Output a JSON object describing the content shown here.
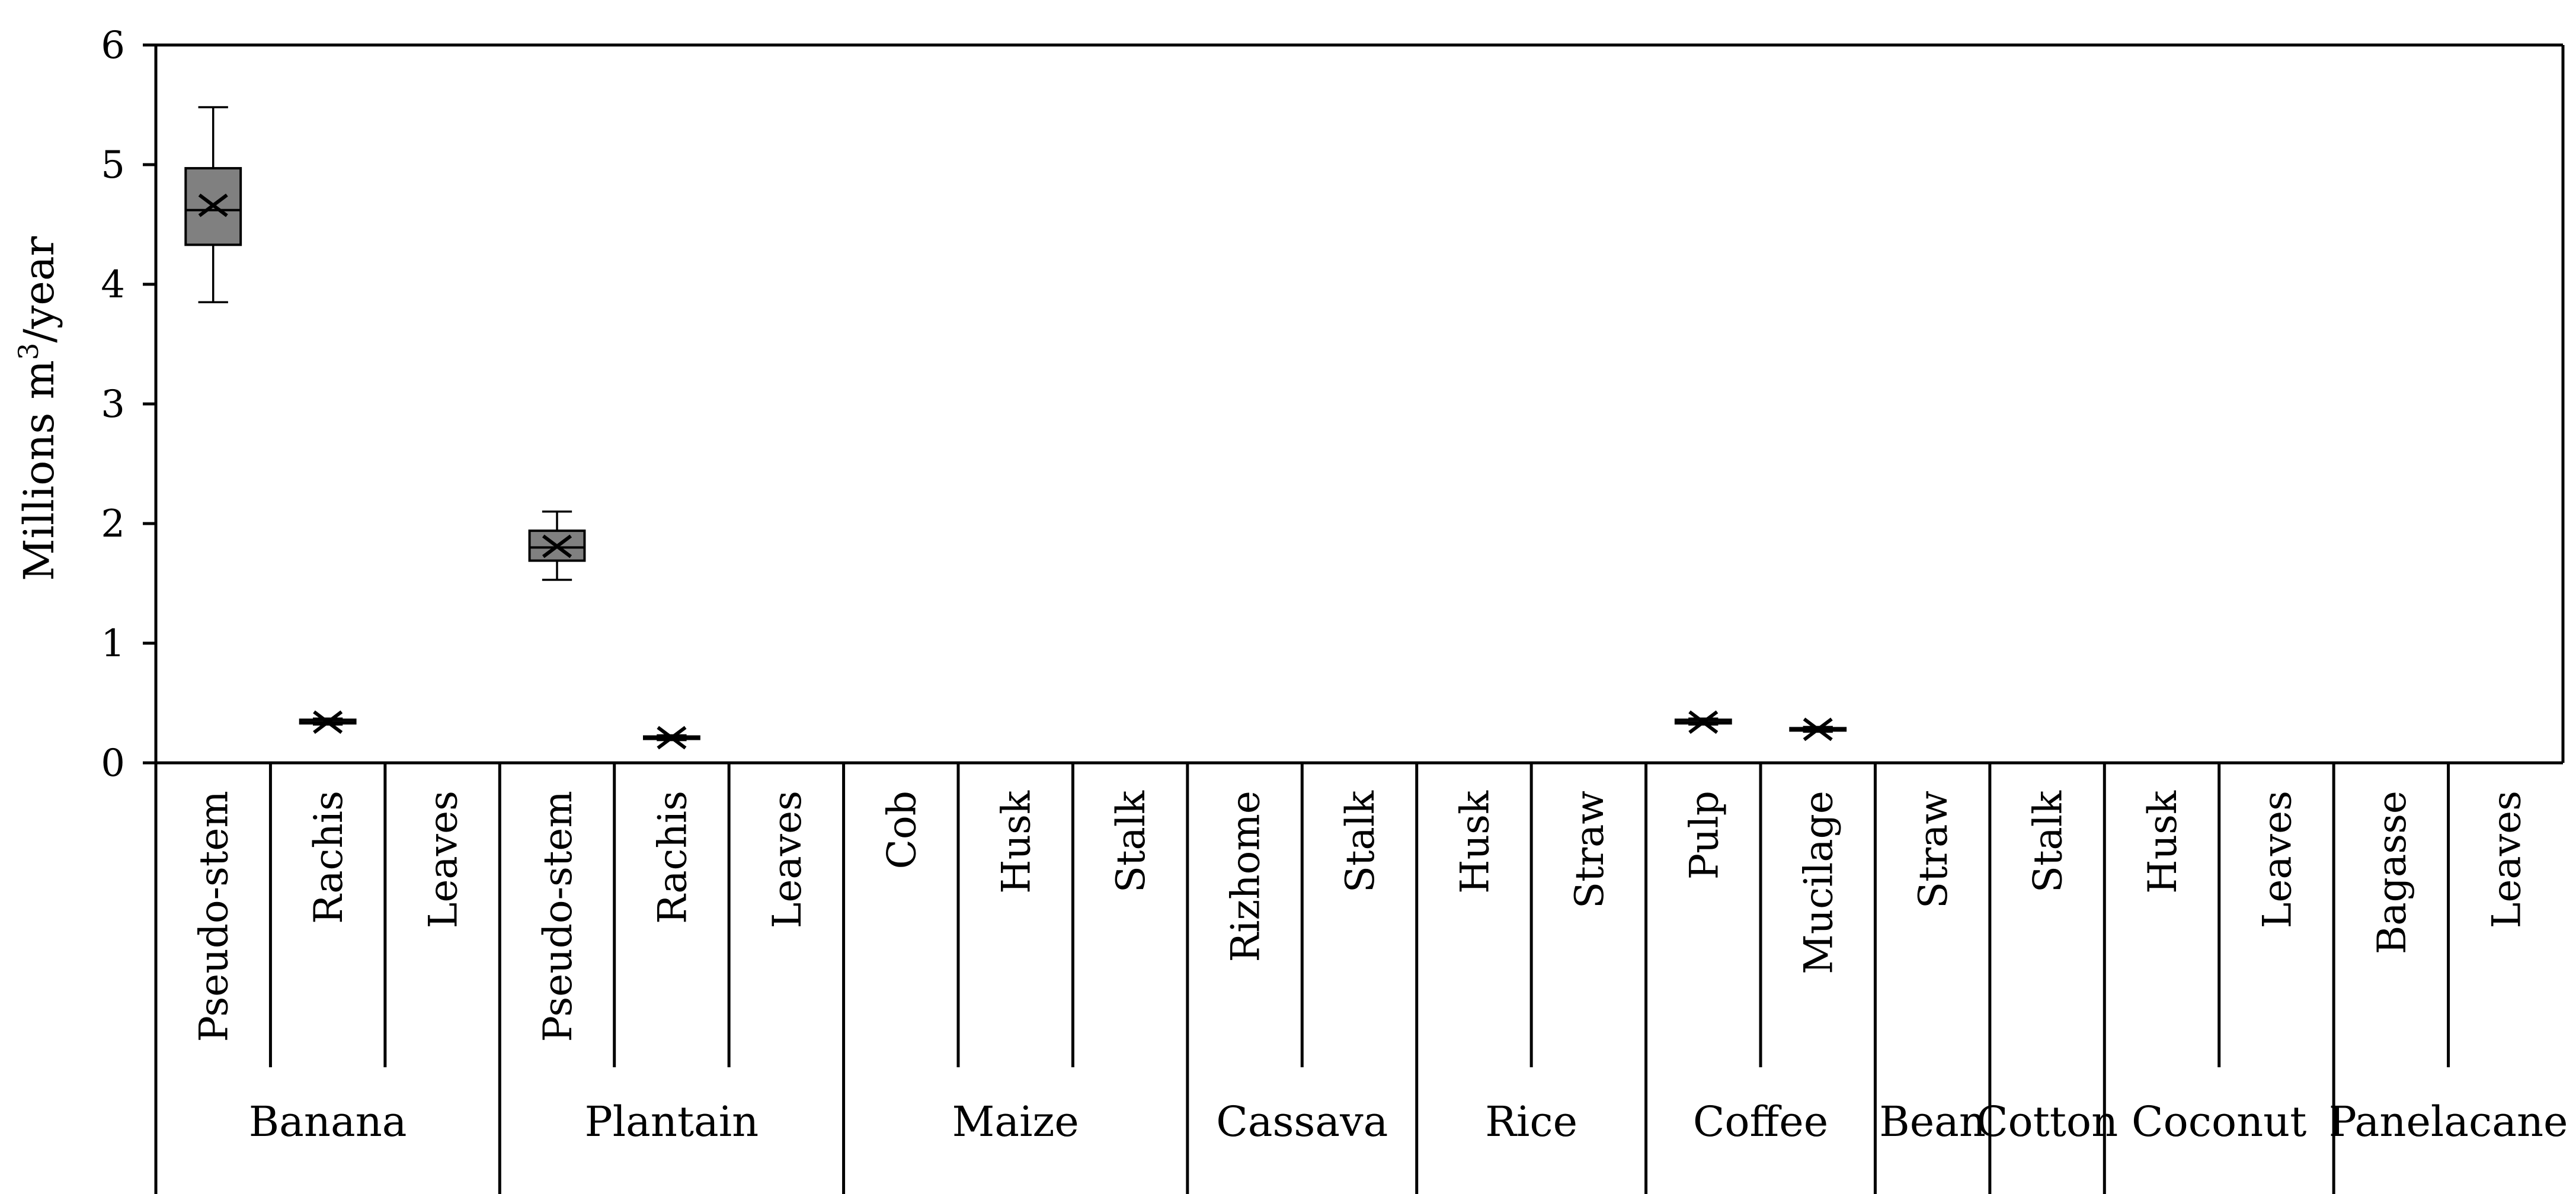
{
  "chart_data": {
    "type": "box",
    "ylabel": "Millions m³/year",
    "ylabel_parts": {
      "before": "Millions m",
      "superscript": "3",
      "after": "/year"
    },
    "ylim": [
      0,
      6
    ],
    "yticks": [
      "0",
      "1",
      "2",
      "3",
      "4",
      "5",
      "6"
    ],
    "grid": false,
    "legend": "none",
    "colors": {
      "box_fill": "#808080",
      "line": "#000000",
      "background": "#ffffff"
    },
    "groups": [
      {
        "name": "Banana",
        "categories": [
          "Pseudo-stem",
          "Rachis",
          "Leaves"
        ]
      },
      {
        "name": "Plantain",
        "categories": [
          "Pseudo-stem",
          "Rachis",
          "Leaves"
        ]
      },
      {
        "name": "Maize",
        "categories": [
          "Cob",
          "Husk",
          "Stalk"
        ]
      },
      {
        "name": "Cassava",
        "categories": [
          "Rizhome",
          "Stalk"
        ]
      },
      {
        "name": "Rice",
        "categories": [
          "Husk",
          "Straw"
        ]
      },
      {
        "name": "Coffee",
        "categories": [
          "Pulp",
          "Mucilage"
        ]
      },
      {
        "name": "Bean",
        "categories": [
          "Straw"
        ]
      },
      {
        "name": "Cotton",
        "categories": [
          "Stalk"
        ]
      },
      {
        "name": "Coconut",
        "categories": [
          "Husk",
          "Leaves"
        ]
      },
      {
        "name": "Panelacane",
        "categories": [
          "Bagasse",
          "Leaves"
        ]
      }
    ],
    "boxes": [
      {
        "group": "Banana",
        "category": "Pseudo-stem",
        "min": 3.85,
        "q1": 4.33,
        "median": 4.62,
        "q3": 4.97,
        "max": 5.48,
        "mean": 4.66
      },
      {
        "group": "Banana",
        "category": "Rachis",
        "min": 0.32,
        "q1": 0.33,
        "median": 0.34,
        "q3": 0.36,
        "max": 0.37,
        "mean": 0.34
      },
      {
        "group": "Plantain",
        "category": "Pseudo-stem",
        "min": 1.53,
        "q1": 1.69,
        "median": 1.8,
        "q3": 1.94,
        "max": 2.1,
        "mean": 1.81
      },
      {
        "group": "Plantain",
        "category": "Rachis",
        "min": 0.19,
        "q1": 0.2,
        "median": 0.21,
        "q3": 0.22,
        "max": 0.23,
        "mean": 0.21
      },
      {
        "group": "Coffee",
        "category": "Pulp",
        "min": 0.32,
        "q1": 0.33,
        "median": 0.34,
        "q3": 0.36,
        "max": 0.37,
        "mean": 0.34
      },
      {
        "group": "Coffee",
        "category": "Mucilage",
        "min": 0.26,
        "q1": 0.27,
        "median": 0.28,
        "q3": 0.29,
        "max": 0.3,
        "mean": 0.28
      }
    ]
  }
}
